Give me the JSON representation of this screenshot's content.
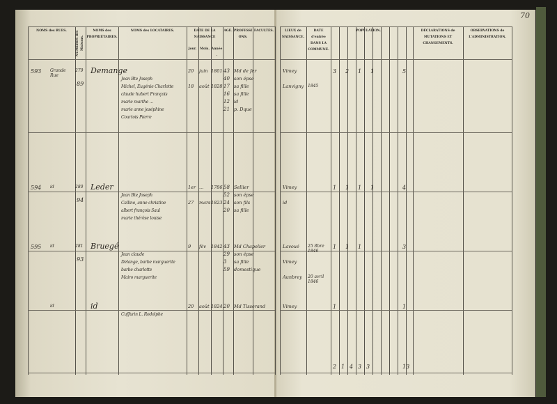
{
  "left_page": {
    "headers": [
      "NOMS des RUES.",
      "NUMÉROS des Maisons.",
      "NOMS des PROPRIÉTAIRES.",
      "NOMS des LOCATAIRES.",
      "DATE DE LA NAISSANCE",
      "Jour.",
      "Mois.",
      "Année.",
      "AGE.",
      "PROFESSIONS.",
      "FACULTÉS."
    ],
    "entries": [
      {
        "no": "593",
        "rue": "Grande Rue",
        "maison": "279",
        "maison2": "89",
        "prop": "Demange",
        "loc": [
          "Jean Bte Joseph",
          "Michel, Eugénie Charlotte",
          "claude hubert François",
          "marie marthe ...",
          "marie anne joséphine",
          "Courtois Pierre"
        ],
        "jour": [
          "20",
          "18"
        ],
        "mois": [
          "juin",
          "août"
        ],
        "annee": [
          "1801",
          "1828"
        ],
        "age": [
          "43",
          "40",
          "17",
          "16",
          "12",
          "21"
        ],
        "prof": [
          "Md de fer",
          "son épse",
          "sa fille",
          "sa fille",
          "id",
          "p. Dque"
        ]
      },
      {
        "no": "594",
        "rue": "id",
        "maison": "280",
        "maison2": "94",
        "prop": "Leder",
        "loc": [
          "Jean Bte Joseph",
          "Callino, anne christine",
          "albert françois Saul",
          "marie thérèse louise"
        ],
        "jour": [
          "1er",
          "27"
        ],
        "mois": [
          "...",
          "mars"
        ],
        "annee": [
          "1786",
          "1823"
        ],
        "age": [
          "58",
          "52",
          "24",
          "20"
        ],
        "prof": [
          "Sellier",
          "son épse",
          "son fils",
          "sa fille"
        ]
      },
      {
        "no": "595",
        "rue": "id",
        "maison": "281",
        "maison2": "93",
        "prop": "Bruegé",
        "loc": [
          "Jean claude",
          "Delange, barbe marguerite",
          "barbe charlotte",
          "Mairo marguerite"
        ],
        "jour": [
          "9"
        ],
        "mois": [
          "fév"
        ],
        "annee": [
          "1842"
        ],
        "age": [
          "43",
          "29",
          "3",
          "59"
        ],
        "prof": [
          "Md Chapelier",
          "son épse",
          "sa fille",
          "domestique"
        ]
      },
      {
        "no": "",
        "rue": "id",
        "maison": "",
        "maison2": "",
        "prop": "id",
        "loc": [
          "Cuffurin L. Rodolphe"
        ],
        "jour": [
          "20"
        ],
        "mois": [
          "août"
        ],
        "annee": [
          "1824"
        ],
        "age": [
          "20"
        ],
        "prof": [
          "Md Tisserand"
        ]
      }
    ]
  },
  "right_page": {
    "page_number": "70",
    "headers": [
      "LIEUX de NAISSANCE.",
      "DATE d'entrée DANS LA COMMUNE.",
      "POPULATION.",
      "DÉCLARATIONS de MUTATIONS ET CHANGEMENTS.",
      "OBSERVATIONS de L'ADMINISTRATION."
    ],
    "entries": [
      {
        "lieux": [
          "Vimey",
          "Lanvigny"
        ],
        "date": [
          "",
          "1845"
        ],
        "pop": [
          "3",
          "2",
          "1",
          "1"
        ],
        "total": "5"
      },
      {
        "lieux": [
          "Vimey",
          "id"
        ],
        "date": [],
        "pop": [
          "1",
          "1",
          "1",
          "1"
        ],
        "total": "4"
      },
      {
        "lieux": [
          "Lavoué",
          "Vimey",
          "Aunbrey"
        ],
        "date": [
          "25 8bre 1846",
          "",
          "20 avril 1846"
        ],
        "pop": [
          "1",
          "1",
          "1"
        ],
        "total": "3"
      },
      {
        "lieux": [
          "Vimey"
        ],
        "date": [],
        "pop": [
          "1"
        ],
        "total": "1"
      }
    ],
    "totals": [
      "2",
      "1",
      "4",
      "3",
      "3"
    ],
    "grand_total": "13"
  }
}
